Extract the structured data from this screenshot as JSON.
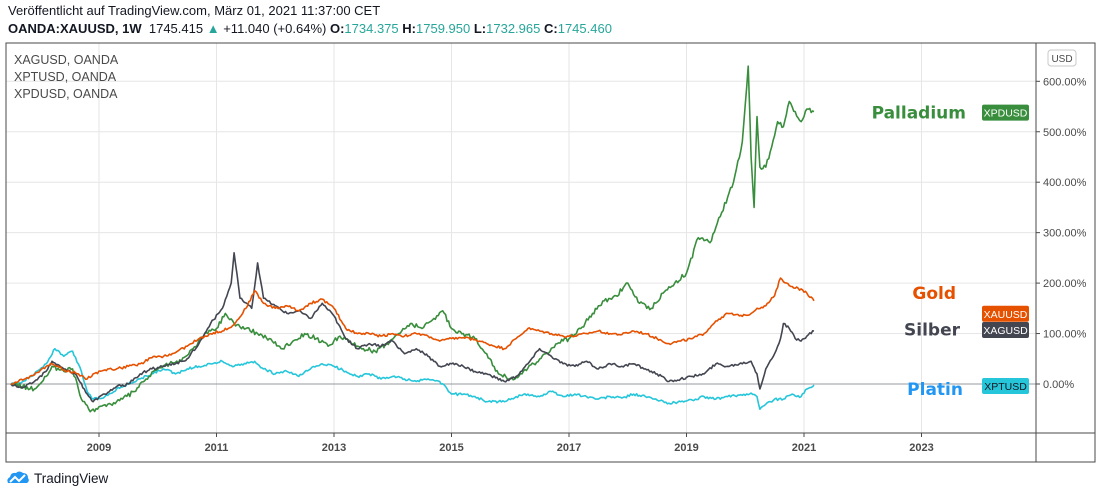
{
  "header": {
    "published": "Veröffentlicht auf TradingView.com, März 01, 2021 11:37:00 CET",
    "symbol": "OANDA:XAUUSD, 1W",
    "last": "1745.415",
    "change_arrow": "▲",
    "change": "+11.040 (+0.64%)",
    "o_label": "O:",
    "o_value": "1734.375",
    "h_label": "H:",
    "h_value": "1759.950",
    "l_label": "L:",
    "l_value": "1732.965",
    "c_label": "C:",
    "c_value": "1745.460"
  },
  "legend": [
    "XAGUSD, OANDA",
    "XPTUSD, OANDA",
    "XPDUSD, OANDA"
  ],
  "currency_badge": "USD",
  "branding": "TradingView",
  "colors": {
    "gold": "#e65100",
    "silver": "#434651",
    "platinum": "#26c6da",
    "palladium": "#388e3c",
    "platin_label": "#2196f3",
    "teal": "#26a69a"
  },
  "chart_data": {
    "type": "line",
    "title": "",
    "xlabel": "",
    "ylabel": "",
    "x_ticks": [
      2009,
      2011,
      2013,
      2015,
      2017,
      2019,
      2021,
      2023
    ],
    "y_ticks": [
      "0.00%",
      "100.00%",
      "200.00%",
      "300.00%",
      "400.00%",
      "500.00%",
      "600.00%"
    ],
    "y_tick_values": [
      0,
      100,
      200,
      300,
      400,
      500,
      600
    ],
    "xlim": [
      2007.5,
      2024.5
    ],
    "ylim": [
      -100,
      670
    ],
    "grid": true,
    "legend_position": "top-left",
    "series": [
      {
        "name": "XAUUSD",
        "label": "Gold",
        "color": "#e65100",
        "x": [
          2007.5,
          2007.7,
          2007.9,
          2008.1,
          2008.2,
          2008.4,
          2008.6,
          2008.8,
          2008.9,
          2009.1,
          2009.3,
          2009.5,
          2009.7,
          2009.9,
          2010.1,
          2010.3,
          2010.5,
          2010.7,
          2010.9,
          2011.1,
          2011.3,
          2011.5,
          2011.65,
          2011.8,
          2012.0,
          2012.2,
          2012.4,
          2012.6,
          2012.8,
          2013.0,
          2013.2,
          2013.4,
          2013.6,
          2013.8,
          2014.0,
          2014.2,
          2014.4,
          2014.6,
          2014.8,
          2015.0,
          2015.2,
          2015.4,
          2015.6,
          2015.9,
          2016.1,
          2016.3,
          2016.5,
          2016.7,
          2016.9,
          2017.1,
          2017.3,
          2017.5,
          2017.7,
          2017.9,
          2018.1,
          2018.3,
          2018.5,
          2018.7,
          2018.9,
          2019.1,
          2019.3,
          2019.5,
          2019.7,
          2019.9,
          2020.1,
          2020.2,
          2020.35,
          2020.5,
          2020.6,
          2020.75,
          2020.9,
          2021.05,
          2021.17
        ],
        "y": [
          0,
          8,
          18,
          35,
          40,
          28,
          22,
          10,
          20,
          28,
          30,
          35,
          40,
          52,
          55,
          62,
          75,
          90,
          100,
          105,
          118,
          150,
          185,
          160,
          150,
          155,
          145,
          160,
          168,
          150,
          110,
          100,
          100,
          95,
          100,
          95,
          100,
          95,
          85,
          90,
          92,
          88,
          80,
          70,
          90,
          110,
          105,
          100,
          95,
          95,
          100,
          105,
          100,
          98,
          105,
          100,
          90,
          80,
          85,
          90,
          100,
          125,
          140,
          135,
          140,
          150,
          155,
          175,
          210,
          195,
          190,
          180,
          165
        ]
      },
      {
        "name": "XAGUSD",
        "label": "Silber",
        "color": "#434651",
        "x": [
          2007.5,
          2007.7,
          2007.9,
          2008.1,
          2008.2,
          2008.4,
          2008.6,
          2008.8,
          2008.9,
          2009.1,
          2009.3,
          2009.5,
          2009.7,
          2009.9,
          2010.1,
          2010.3,
          2010.5,
          2010.7,
          2010.9,
          2011.1,
          2011.25,
          2011.3,
          2011.4,
          2011.6,
          2011.7,
          2011.8,
          2012.0,
          2012.2,
          2012.4,
          2012.6,
          2012.8,
          2013.0,
          2013.2,
          2013.4,
          2013.6,
          2013.8,
          2014.0,
          2014.2,
          2014.4,
          2014.6,
          2014.8,
          2015.0,
          2015.2,
          2015.4,
          2015.6,
          2015.9,
          2016.1,
          2016.3,
          2016.5,
          2016.7,
          2016.9,
          2017.1,
          2017.3,
          2017.5,
          2017.7,
          2017.9,
          2018.1,
          2018.3,
          2018.5,
          2018.7,
          2018.9,
          2019.1,
          2019.3,
          2019.5,
          2019.7,
          2019.9,
          2020.1,
          2020.2,
          2020.25,
          2020.35,
          2020.5,
          2020.6,
          2020.65,
          2020.75,
          2020.85,
          2020.95,
          2021.05,
          2021.17
        ],
        "y": [
          0,
          -8,
          5,
          25,
          45,
          30,
          20,
          -20,
          -35,
          -20,
          -5,
          0,
          20,
          30,
          35,
          40,
          50,
          80,
          120,
          150,
          200,
          260,
          170,
          150,
          240,
          170,
          155,
          140,
          145,
          130,
          160,
          135,
          90,
          70,
          80,
          75,
          85,
          60,
          70,
          55,
          35,
          40,
          35,
          25,
          20,
          5,
          15,
          40,
          70,
          55,
          40,
          35,
          45,
          30,
          40,
          35,
          40,
          30,
          20,
          5,
          10,
          15,
          20,
          40,
          35,
          40,
          45,
          20,
          -10,
          30,
          60,
          90,
          120,
          110,
          90,
          85,
          95,
          105
        ]
      },
      {
        "name": "XPTUSD",
        "label": "Platin",
        "color": "#26c6da",
        "x": [
          2007.5,
          2007.7,
          2007.9,
          2008.1,
          2008.25,
          2008.4,
          2008.55,
          2008.7,
          2008.8,
          2008.9,
          2009.1,
          2009.3,
          2009.5,
          2009.7,
          2009.9,
          2010.1,
          2010.3,
          2010.5,
          2010.7,
          2010.9,
          2011.1,
          2011.3,
          2011.5,
          2011.65,
          2011.8,
          2012.0,
          2012.2,
          2012.4,
          2012.6,
          2012.8,
          2013.0,
          2013.2,
          2013.4,
          2013.6,
          2013.8,
          2014.0,
          2014.2,
          2014.4,
          2014.6,
          2014.8,
          2015.0,
          2015.2,
          2015.4,
          2015.6,
          2015.9,
          2016.1,
          2016.3,
          2016.5,
          2016.7,
          2016.9,
          2017.1,
          2017.3,
          2017.5,
          2017.7,
          2017.9,
          2018.1,
          2018.3,
          2018.5,
          2018.7,
          2018.9,
          2019.1,
          2019.3,
          2019.5,
          2019.7,
          2019.9,
          2020.1,
          2020.2,
          2020.25,
          2020.35,
          2020.5,
          2020.65,
          2020.8,
          2020.95,
          2021.05,
          2021.17
        ],
        "y": [
          0,
          5,
          20,
          40,
          70,
          55,
          65,
          25,
          -15,
          -30,
          -25,
          -10,
          0,
          10,
          20,
          30,
          20,
          30,
          35,
          40,
          45,
          35,
          40,
          45,
          30,
          20,
          25,
          15,
          30,
          40,
          35,
          25,
          15,
          20,
          10,
          15,
          10,
          5,
          10,
          5,
          -20,
          -20,
          -25,
          -35,
          -35,
          -25,
          -20,
          -25,
          -15,
          -25,
          -20,
          -25,
          -30,
          -25,
          -28,
          -20,
          -25,
          -32,
          -38,
          -35,
          -32,
          -25,
          -30,
          -25,
          -22,
          -18,
          -25,
          -50,
          -40,
          -30,
          -30,
          -20,
          -25,
          -10,
          -2
        ]
      },
      {
        "name": "XPDUSD",
        "label": "Palladium",
        "color": "#388e3c",
        "x": [
          2007.5,
          2007.7,
          2007.9,
          2008.1,
          2008.2,
          2008.4,
          2008.55,
          2008.7,
          2008.85,
          2009.0,
          2009.2,
          2009.4,
          2009.6,
          2009.8,
          2010.0,
          2010.2,
          2010.4,
          2010.6,
          2010.8,
          2011.0,
          2011.15,
          2011.3,
          2011.5,
          2011.7,
          2011.9,
          2012.1,
          2012.3,
          2012.5,
          2012.7,
          2012.9,
          2013.1,
          2013.3,
          2013.5,
          2013.7,
          2013.9,
          2014.1,
          2014.3,
          2014.5,
          2014.7,
          2014.85,
          2015.0,
          2015.2,
          2015.4,
          2015.6,
          2015.8,
          2016.0,
          2016.2,
          2016.4,
          2016.6,
          2016.8,
          2017.0,
          2017.2,
          2017.4,
          2017.6,
          2017.8,
          2018.0,
          2018.2,
          2018.4,
          2018.6,
          2018.8,
          2019.0,
          2019.2,
          2019.4,
          2019.6,
          2019.8,
          2019.95,
          2020.05,
          2020.1,
          2020.15,
          2020.2,
          2020.25,
          2020.35,
          2020.45,
          2020.55,
          2020.65,
          2020.75,
          2020.85,
          2020.95,
          2021.05,
          2021.17
        ],
        "y": [
          0,
          -5,
          -10,
          15,
          35,
          25,
          30,
          -30,
          -55,
          -45,
          -40,
          -30,
          -15,
          10,
          30,
          40,
          45,
          70,
          100,
          110,
          140,
          120,
          110,
          100,
          90,
          70,
          85,
          100,
          90,
          75,
          95,
          80,
          70,
          65,
          80,
          100,
          120,
          110,
          130,
          145,
          110,
          100,
          90,
          60,
          20,
          10,
          20,
          40,
          60,
          80,
          90,
          110,
          140,
          165,
          175,
          200,
          160,
          150,
          180,
          200,
          220,
          290,
          280,
          340,
          400,
          480,
          630,
          450,
          350,
          530,
          430,
          430,
          470,
          520,
          510,
          560,
          540,
          520,
          545,
          540
        ]
      }
    ],
    "annotations": [
      {
        "text": "Palladium",
        "series": "XPDUSD"
      },
      {
        "text": "Gold",
        "series": "XAUUSD"
      },
      {
        "text": "Silber",
        "series": "XAGUSD"
      },
      {
        "text": "Platin",
        "series": "XPTUSD"
      }
    ],
    "price_labels": [
      {
        "text": "XPDUSD",
        "value": 540
      },
      {
        "text": "XAUUSD",
        "value": 165
      },
      {
        "text": "XAGUSD",
        "value": 105
      },
      {
        "text": "XPTUSD",
        "value": -2
      }
    ]
  }
}
